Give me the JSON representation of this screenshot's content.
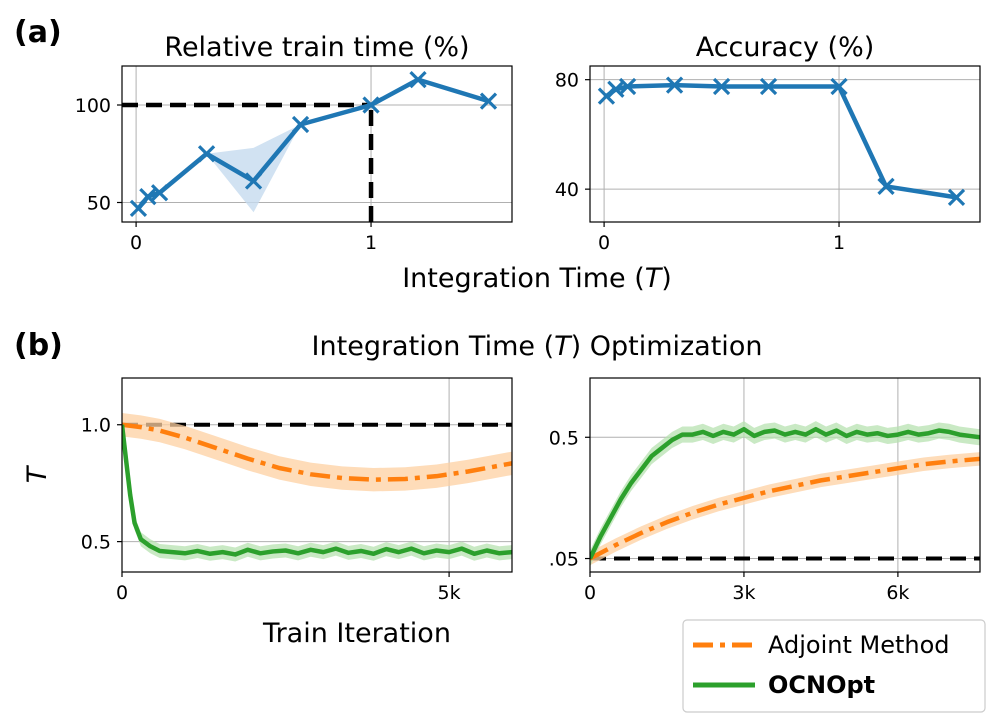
{
  "panel_labels": {
    "a": "(a)",
    "b": "(b)"
  },
  "section_b": {
    "title_prefix": "Integration Time (",
    "title_var": "T",
    "title_suffix": ") Optimization"
  },
  "chart_data": [
    {
      "id": "a_left",
      "type": "line",
      "title": "Relative train time (%)",
      "xlabel": "",
      "ylabel": "",
      "xlim": [
        -0.06,
        1.6
      ],
      "ylim": [
        40,
        120
      ],
      "xticks": [
        {
          "v": 0,
          "label": "0"
        },
        {
          "v": 1,
          "label": "1"
        }
      ],
      "yticks": [
        {
          "v": 50,
          "label": "50"
        },
        {
          "v": 100,
          "label": "100"
        }
      ],
      "xgrid": [
        0,
        1
      ],
      "ygrid": [
        50,
        100
      ],
      "color": "#1f77b4",
      "band_color": "#c6dbef",
      "points": [
        {
          "x": 0.01,
          "y": 47
        },
        {
          "x": 0.05,
          "y": 53
        },
        {
          "x": 0.1,
          "y": 55
        },
        {
          "x": 0.3,
          "y": 75
        },
        {
          "x": 0.5,
          "y": 61
        },
        {
          "x": 0.7,
          "y": 90
        },
        {
          "x": 1.0,
          "y": 100
        },
        {
          "x": 1.2,
          "y": 113
        },
        {
          "x": 1.5,
          "y": 102
        }
      ],
      "band": [
        {
          "x": 0.3,
          "lo": 75,
          "hi": 75
        },
        {
          "x": 0.5,
          "lo": 45,
          "hi": 78
        },
        {
          "x": 0.7,
          "lo": 90,
          "hi": 90
        }
      ],
      "ref_lines": [
        {
          "orientation": "h",
          "y": 100,
          "x0": -0.06,
          "x1": 1.0
        },
        {
          "orientation": "v",
          "x": 1.0,
          "y0": 40,
          "y1": 100
        }
      ]
    },
    {
      "id": "a_right",
      "type": "line",
      "title": "Accuracy (%)",
      "xlabel": "",
      "ylabel": "",
      "xlim": [
        -0.06,
        1.6
      ],
      "ylim": [
        28,
        85
      ],
      "xticks": [
        {
          "v": 0,
          "label": "0"
        },
        {
          "v": 1,
          "label": "1"
        }
      ],
      "yticks": [
        {
          "v": 40,
          "label": "40"
        },
        {
          "v": 80,
          "label": "80"
        }
      ],
      "xgrid": [
        0,
        1
      ],
      "ygrid": [
        40,
        80
      ],
      "color": "#1f77b4",
      "points": [
        {
          "x": 0.01,
          "y": 74
        },
        {
          "x": 0.05,
          "y": 76.5
        },
        {
          "x": 0.1,
          "y": 77.5
        },
        {
          "x": 0.3,
          "y": 78
        },
        {
          "x": 0.5,
          "y": 77.5
        },
        {
          "x": 0.7,
          "y": 77.5
        },
        {
          "x": 1.0,
          "y": 77.5
        },
        {
          "x": 1.2,
          "y": 41
        },
        {
          "x": 1.5,
          "y": 37
        }
      ]
    },
    {
      "id": "b_left",
      "type": "line",
      "title": "",
      "xlabel": "Train Iteration",
      "ylabel": "T",
      "xlim": [
        0,
        6200
      ],
      "ylim": [
        0.37,
        1.2
      ],
      "xticks": [
        {
          "v": 0,
          "label": "0"
        },
        {
          "v": 5200,
          "label": "5k"
        }
      ],
      "yticks": [
        {
          "v": 0.5,
          "label": "0.5"
        },
        {
          "v": 1.0,
          "label": "1.0"
        }
      ],
      "xgrid": [
        5200
      ],
      "ygrid": [
        0.5,
        1.0
      ],
      "ref_line_y": 1.0,
      "series": [
        {
          "name": "Adjoint Method",
          "color": "#ff7f0e",
          "band_color": "#fdd0a2",
          "dash": "dashdot",
          "points": [
            {
              "x": 0,
              "y": 1.0
            },
            {
              "x": 300,
              "y": 0.99
            },
            {
              "x": 600,
              "y": 0.975
            },
            {
              "x": 1000,
              "y": 0.945
            },
            {
              "x": 1500,
              "y": 0.9
            },
            {
              "x": 2000,
              "y": 0.855
            },
            {
              "x": 2500,
              "y": 0.815
            },
            {
              "x": 3000,
              "y": 0.788
            },
            {
              "x": 3500,
              "y": 0.772
            },
            {
              "x": 4000,
              "y": 0.765
            },
            {
              "x": 4500,
              "y": 0.768
            },
            {
              "x": 5000,
              "y": 0.78
            },
            {
              "x": 5500,
              "y": 0.8
            },
            {
              "x": 6200,
              "y": 0.835
            }
          ],
          "band_width": 0.05
        },
        {
          "name": "OCNOpt",
          "color": "#2ca02c",
          "band_color": "#b7e2b0",
          "dash": "solid",
          "points": [
            {
              "x": 0,
              "y": 1.0
            },
            {
              "x": 60,
              "y": 0.86
            },
            {
              "x": 130,
              "y": 0.7
            },
            {
              "x": 200,
              "y": 0.58
            },
            {
              "x": 300,
              "y": 0.51
            },
            {
              "x": 450,
              "y": 0.48
            },
            {
              "x": 600,
              "y": 0.46
            },
            {
              "x": 800,
              "y": 0.455
            },
            {
              "x": 1000,
              "y": 0.45
            },
            {
              "x": 1200,
              "y": 0.46
            },
            {
              "x": 1400,
              "y": 0.448
            },
            {
              "x": 1600,
              "y": 0.455
            },
            {
              "x": 1800,
              "y": 0.445
            },
            {
              "x": 2000,
              "y": 0.465
            },
            {
              "x": 2200,
              "y": 0.45
            },
            {
              "x": 2400,
              "y": 0.458
            },
            {
              "x": 2600,
              "y": 0.462
            },
            {
              "x": 2800,
              "y": 0.45
            },
            {
              "x": 3000,
              "y": 0.465
            },
            {
              "x": 3200,
              "y": 0.455
            },
            {
              "x": 3400,
              "y": 0.47
            },
            {
              "x": 3600,
              "y": 0.452
            },
            {
              "x": 3800,
              "y": 0.46
            },
            {
              "x": 4000,
              "y": 0.448
            },
            {
              "x": 4200,
              "y": 0.468
            },
            {
              "x": 4400,
              "y": 0.455
            },
            {
              "x": 4600,
              "y": 0.47
            },
            {
              "x": 4800,
              "y": 0.45
            },
            {
              "x": 5000,
              "y": 0.462
            },
            {
              "x": 5200,
              "y": 0.455
            },
            {
              "x": 5400,
              "y": 0.47
            },
            {
              "x": 5600,
              "y": 0.448
            },
            {
              "x": 5800,
              "y": 0.462
            },
            {
              "x": 6000,
              "y": 0.45
            },
            {
              "x": 6200,
              "y": 0.455
            }
          ],
          "band_width": 0.03
        }
      ]
    },
    {
      "id": "b_right",
      "type": "line",
      "title": "",
      "xlabel": "",
      "ylabel": "",
      "xlim": [
        0,
        7600
      ],
      "ylim": [
        0.0,
        0.72
      ],
      "xticks": [
        {
          "v": 0,
          "label": "0"
        },
        {
          "v": 3000,
          "label": "3k"
        },
        {
          "v": 6000,
          "label": "6k"
        }
      ],
      "yticks": [
        {
          "v": 0.05,
          "label": ".05"
        },
        {
          "v": 0.5,
          "label": "0.5"
        }
      ],
      "xgrid": [
        3000,
        6000
      ],
      "ygrid": [
        0.05,
        0.5
      ],
      "ref_line_y": 0.05,
      "series": [
        {
          "name": "Adjoint Method",
          "color": "#ff7f0e",
          "band_color": "#fdd0a2",
          "dash": "dashdot",
          "points": [
            {
              "x": 0,
              "y": 0.05
            },
            {
              "x": 500,
              "y": 0.1
            },
            {
              "x": 1000,
              "y": 0.145
            },
            {
              "x": 1500,
              "y": 0.185
            },
            {
              "x": 2000,
              "y": 0.22
            },
            {
              "x": 2500,
              "y": 0.25
            },
            {
              "x": 3000,
              "y": 0.275
            },
            {
              "x": 3500,
              "y": 0.3
            },
            {
              "x": 4000,
              "y": 0.32
            },
            {
              "x": 4500,
              "y": 0.34
            },
            {
              "x": 5000,
              "y": 0.355
            },
            {
              "x": 5500,
              "y": 0.37
            },
            {
              "x": 6000,
              "y": 0.385
            },
            {
              "x": 6500,
              "y": 0.4
            },
            {
              "x": 7000,
              "y": 0.41
            },
            {
              "x": 7600,
              "y": 0.42
            }
          ],
          "band_width": 0.025
        },
        {
          "name": "OCNOpt",
          "color": "#2ca02c",
          "band_color": "#b7e2b0",
          "dash": "solid",
          "points": [
            {
              "x": 0,
              "y": 0.05
            },
            {
              "x": 200,
              "y": 0.13
            },
            {
              "x": 400,
              "y": 0.2
            },
            {
              "x": 600,
              "y": 0.27
            },
            {
              "x": 800,
              "y": 0.33
            },
            {
              "x": 1000,
              "y": 0.38
            },
            {
              "x": 1200,
              "y": 0.43
            },
            {
              "x": 1400,
              "y": 0.46
            },
            {
              "x": 1600,
              "y": 0.49
            },
            {
              "x": 1800,
              "y": 0.51
            },
            {
              "x": 2000,
              "y": 0.51
            },
            {
              "x": 2200,
              "y": 0.52
            },
            {
              "x": 2400,
              "y": 0.505
            },
            {
              "x": 2600,
              "y": 0.52
            },
            {
              "x": 2800,
              "y": 0.51
            },
            {
              "x": 3000,
              "y": 0.53
            },
            {
              "x": 3200,
              "y": 0.505
            },
            {
              "x": 3400,
              "y": 0.52
            },
            {
              "x": 3600,
              "y": 0.525
            },
            {
              "x": 3800,
              "y": 0.51
            },
            {
              "x": 4000,
              "y": 0.52
            },
            {
              "x": 4200,
              "y": 0.51
            },
            {
              "x": 4400,
              "y": 0.53
            },
            {
              "x": 4600,
              "y": 0.51
            },
            {
              "x": 4800,
              "y": 0.525
            },
            {
              "x": 5000,
              "y": 0.505
            },
            {
              "x": 5200,
              "y": 0.52
            },
            {
              "x": 5400,
              "y": 0.51
            },
            {
              "x": 5600,
              "y": 0.515
            },
            {
              "x": 5800,
              "y": 0.505
            },
            {
              "x": 6000,
              "y": 0.51
            },
            {
              "x": 6200,
              "y": 0.52
            },
            {
              "x": 6400,
              "y": 0.51
            },
            {
              "x": 6600,
              "y": 0.515
            },
            {
              "x": 6800,
              "y": 0.525
            },
            {
              "x": 7000,
              "y": 0.52
            },
            {
              "x": 7200,
              "y": 0.51
            },
            {
              "x": 7400,
              "y": 0.505
            },
            {
              "x": 7600,
              "y": 0.5
            }
          ],
          "band_width": 0.03
        }
      ]
    }
  ],
  "shared_labels": {
    "a_xlabel_prefix": "Integration Time (",
    "a_xlabel_var": "T",
    "a_xlabel_suffix": ")"
  },
  "legend": {
    "placement": "bottom-right",
    "items": [
      {
        "label": "Adjoint Method",
        "color": "#ff7f0e",
        "dash": "dashdot",
        "bold": false
      },
      {
        "label": "OCNOpt",
        "color": "#2ca02c",
        "dash": "solid",
        "bold": true
      }
    ]
  }
}
